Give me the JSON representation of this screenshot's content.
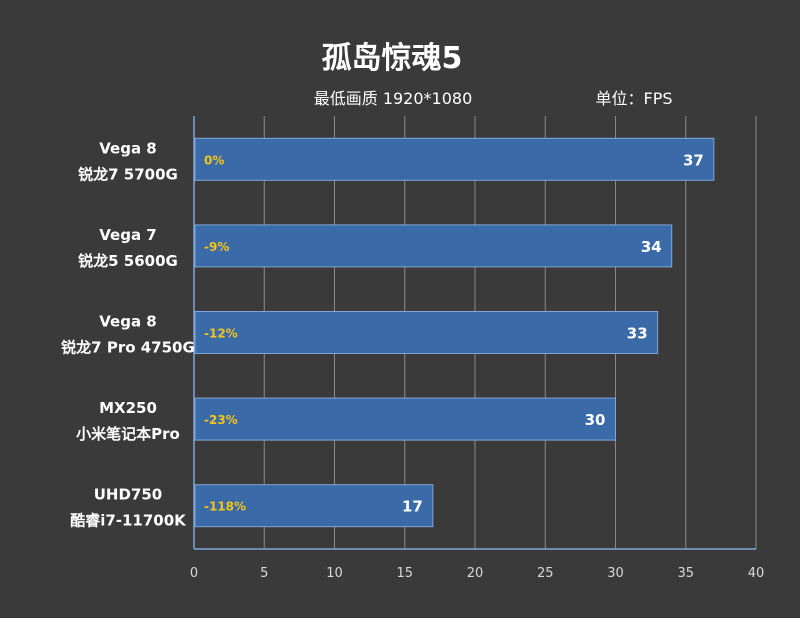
{
  "chart_data": {
    "type": "bar",
    "orientation": "horizontal",
    "title": "孤岛惊魂5",
    "subtitle": "最低画质 1920*1080",
    "unit": "单位：FPS",
    "categories": [
      [
        "Vega 8",
        "锐龙7 5700G"
      ],
      [
        "Vega 7",
        "锐龙5 5600G"
      ],
      [
        "Vega 8",
        "锐龙7 Pro 4750G"
      ],
      [
        "MX250",
        "小米笔记本Pro"
      ],
      [
        "UHD750",
        "酷睿i7-11700K"
      ]
    ],
    "values": [
      37,
      34,
      33,
      30,
      17
    ],
    "value_labels": [
      "37",
      "34",
      "33",
      "30",
      "17"
    ],
    "percent_labels": [
      "0%",
      "-9%",
      "-12%",
      "-23%",
      "-118%"
    ],
    "xlim": [
      0,
      40
    ],
    "xticks": [
      0,
      5,
      10,
      15,
      20,
      25,
      30,
      35,
      40
    ],
    "grid": true,
    "colors": {
      "bar": "#3a6aa8",
      "bar_edge": "#7fa6d8",
      "percent": "#f5c518",
      "grid": "#8a8a8a",
      "background": "#3a3a3a"
    }
  }
}
